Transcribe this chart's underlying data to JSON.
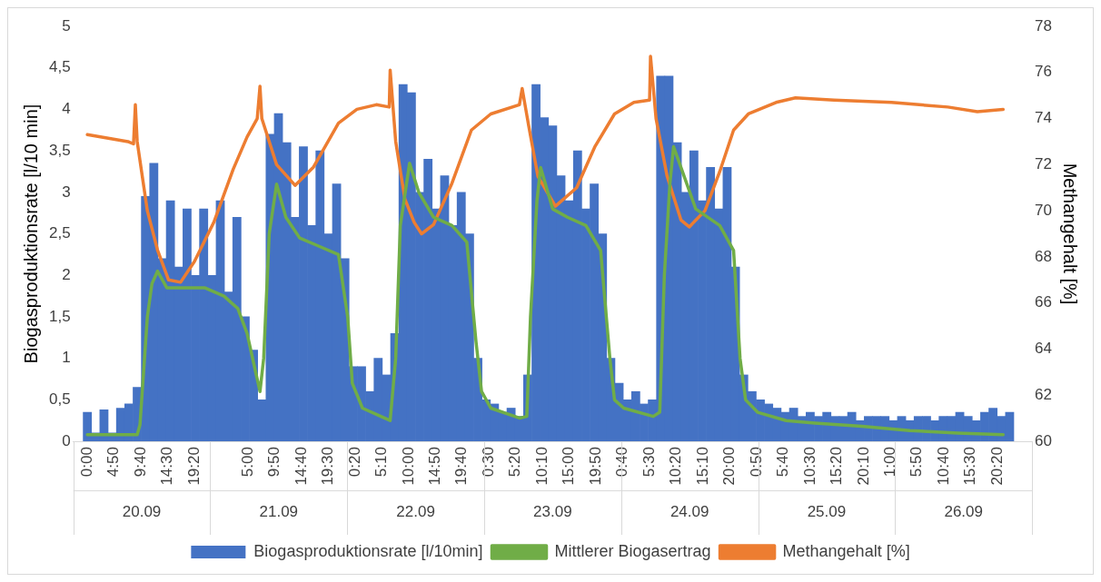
{
  "chart_data": {
    "type": "bar",
    "xlim": [
      "--09-20T00:00",
      "--09-27T00:00"
    ],
    "xticks": [
      {
        "value": "--09-20T00:00",
        "label": "0:00"
      },
      {
        "value": "--09-20T04:50",
        "label": "4:50"
      },
      {
        "value": "--09-20T09:40",
        "label": "9:40"
      },
      {
        "value": "--09-20T14:30",
        "label": "14:30"
      },
      {
        "value": "--09-20T19:20",
        "label": "19:20"
      },
      {
        "value": "--09-21T05:00",
        "label": "5:00"
      },
      {
        "value": "--09-21T09:50",
        "label": "9:50"
      },
      {
        "value": "--09-21T14:40",
        "label": "14:40"
      },
      {
        "value": "--09-21T19:30",
        "label": "19:30"
      },
      {
        "value": "--09-22T00:20",
        "label": "0:20"
      },
      {
        "value": "--09-22T05:10",
        "label": "5:10"
      },
      {
        "value": "--09-22T10:00",
        "label": "10:00"
      },
      {
        "value": "--09-22T14:50",
        "label": "14:50"
      },
      {
        "value": "--09-22T19:40",
        "label": "19:40"
      },
      {
        "value": "--09-23T00:30",
        "label": "0:30"
      },
      {
        "value": "--09-23T05:20",
        "label": "5:20"
      },
      {
        "value": "--09-23T10:10",
        "label": "10:10"
      },
      {
        "value": "--09-23T15:00",
        "label": "15:00"
      },
      {
        "value": "--09-23T19:50",
        "label": "19:50"
      },
      {
        "value": "--09-24T00:40",
        "label": "0:40"
      },
      {
        "value": "--09-24T05:30",
        "label": "5:30"
      },
      {
        "value": "--09-24T10:20",
        "label": "10:20"
      },
      {
        "value": "--09-24T15:10",
        "label": "15:10"
      },
      {
        "value": "--09-24T20:00",
        "label": "20:00"
      },
      {
        "value": "--09-25T00:50",
        "label": "0:50"
      },
      {
        "value": "--09-25T05:40",
        "label": "5:40"
      },
      {
        "value": "--09-25T10:30",
        "label": "10:30"
      },
      {
        "value": "--09-25T15:20",
        "label": "15:20"
      },
      {
        "value": "--09-25T20:10",
        "label": "20:10"
      },
      {
        "value": "--09-26T01:00",
        "label": "1:00"
      },
      {
        "value": "--09-26T05:50",
        "label": "5:50"
      },
      {
        "value": "--09-26T10:40",
        "label": "10:40"
      },
      {
        "value": "--09-26T15:30",
        "label": "15:30"
      },
      {
        "value": "--09-26T20:20",
        "label": "20:20"
      }
    ],
    "x2lim": [
      "--09-20",
      "--09-27"
    ],
    "x2ticks": [
      {
        "value": "--09-20",
        "label": "20.09"
      },
      {
        "value": "--09-21",
        "label": "21.09"
      },
      {
        "value": "--09-22",
        "label": "22.09"
      },
      {
        "value": "--09-23",
        "label": "23.09"
      },
      {
        "value": "--09-24",
        "label": "24.09"
      },
      {
        "value": "--09-25",
        "label": "25.09"
      },
      {
        "value": "--09-26",
        "label": "26.09"
      }
    ],
    "ylabel": "Biogasproduktionsrate [l/10 min]",
    "y2label": "Methangehalt [%]",
    "ylim": [
      0,
      5
    ],
    "yticks": [
      0,
      {
        "value": 0.5,
        "label": "0,5"
      },
      1,
      {
        "value": 1.5,
        "label": "1,5"
      },
      2,
      {
        "value": 2.5,
        "label": "2,5"
      },
      3,
      {
        "value": 3.5,
        "label": "3,5"
      },
      4,
      {
        "value": 4.5,
        "label": "4,5"
      },
      5
    ],
    "y2lim": [
      60,
      78
    ],
    "y2ticks": [
      60,
      62,
      64,
      66,
      68,
      70,
      72,
      74,
      76,
      78
    ],
    "legend": "bottom",
    "marker": "none",
    "line_style": "solid",
    "grid": false,
    "series": [
      {
        "name": "Biogasproduktionsrate [l/10min]",
        "color": "#4472c4",
        "x": [
          "--09-20T00:00",
          "--09-20T01:30",
          "--09-20T03:00",
          "--09-20T04:30",
          "--09-20T06:00",
          "--09-20T07:30",
          "--09-20T09:00",
          "--09-20T10:30",
          "--09-20T12:00",
          "--09-20T13:30",
          "--09-20T15:00",
          "--09-20T16:30",
          "--09-20T18:00",
          "--09-20T19:30",
          "--09-20T21:00",
          "--09-20T22:30",
          "--09-21T00:00",
          "--09-21T01:30",
          "--09-21T03:00",
          "--09-21T04:30",
          "--09-21T06:00",
          "--09-21T07:30",
          "--09-21T09:00",
          "--09-21T10:30",
          "--09-21T12:00",
          "--09-21T13:30",
          "--09-21T15:00",
          "--09-21T16:30",
          "--09-21T18:00",
          "--09-21T19:30",
          "--09-21T21:00",
          "--09-21T22:30",
          "--09-22T00:00",
          "--09-22T01:30",
          "--09-22T03:00",
          "--09-22T04:30",
          "--09-22T06:00",
          "--09-22T07:30",
          "--09-22T09:00",
          "--09-22T10:30",
          "--09-22T12:00",
          "--09-22T13:30",
          "--09-22T15:00",
          "--09-22T16:30",
          "--09-22T18:00",
          "--09-22T19:30",
          "--09-22T21:00",
          "--09-22T22:30",
          "--09-23T00:00",
          "--09-23T01:30",
          "--09-23T03:00",
          "--09-23T04:30",
          "--09-23T06:00",
          "--09-23T07:30",
          "--09-23T09:00",
          "--09-23T10:30",
          "--09-23T12:00",
          "--09-23T13:30",
          "--09-23T15:00",
          "--09-23T16:30",
          "--09-23T18:00",
          "--09-23T19:30",
          "--09-23T21:00",
          "--09-23T22:30",
          "--09-24T00:00",
          "--09-24T01:30",
          "--09-24T03:00",
          "--09-24T04:30",
          "--09-24T06:00",
          "--09-24T07:30",
          "--09-24T09:00",
          "--09-24T10:30",
          "--09-24T12:00",
          "--09-24T13:30",
          "--09-24T15:00",
          "--09-24T16:30",
          "--09-24T18:00",
          "--09-24T19:30",
          "--09-24T21:00",
          "--09-24T22:30",
          "--09-25T00:00",
          "--09-25T01:30",
          "--09-25T03:00",
          "--09-25T04:30",
          "--09-25T06:00",
          "--09-25T07:30",
          "--09-25T09:00",
          "--09-25T10:30",
          "--09-25T12:00",
          "--09-25T13:30",
          "--09-25T15:00",
          "--09-25T16:30",
          "--09-25T18:00",
          "--09-25T19:30",
          "--09-25T21:00",
          "--09-25T22:30",
          "--09-26T00:00",
          "--09-26T01:30",
          "--09-26T03:00",
          "--09-26T04:30",
          "--09-26T06:00",
          "--09-26T07:30",
          "--09-26T09:00",
          "--09-26T10:30",
          "--09-26T12:00",
          "--09-26T13:30",
          "--09-26T15:00",
          "--09-26T16:30",
          "--09-26T18:00",
          "--09-26T19:30",
          "--09-26T21:00",
          "--09-26T22:30"
        ],
        "values": [
          0.35,
          0.1,
          0.38,
          0.1,
          0.4,
          0.45,
          0.65,
          2.95,
          3.35,
          2.2,
          2.9,
          2.1,
          2.8,
          2.0,
          2.8,
          2.0,
          2.9,
          1.8,
          2.7,
          1.5,
          1.1,
          0.5,
          3.7,
          3.95,
          3.6,
          2.7,
          3.55,
          2.6,
          3.5,
          2.5,
          3.1,
          2.2,
          0.9,
          0.9,
          0.6,
          1.0,
          0.8,
          1.3,
          4.3,
          4.2,
          3.0,
          3.4,
          2.8,
          3.2,
          2.6,
          3.0,
          2.5,
          1.0,
          0.5,
          0.45,
          0.35,
          0.4,
          0.3,
          0.8,
          4.3,
          3.9,
          3.8,
          3.2,
          2.9,
          3.5,
          2.8,
          3.1,
          2.5,
          1.0,
          0.7,
          0.5,
          0.6,
          0.45,
          0.5,
          4.4,
          4.4,
          3.6,
          3.0,
          3.5,
          2.9,
          3.3,
          2.8,
          3.3,
          2.1,
          0.8,
          0.6,
          0.5,
          0.45,
          0.4,
          0.35,
          0.4,
          0.3,
          0.35,
          0.3,
          0.35,
          0.3,
          0.3,
          0.35,
          0.25,
          0.3,
          0.3,
          0.3,
          0.25,
          0.3,
          0.25,
          0.3,
          0.3,
          0.25,
          0.3,
          0.3,
          0.35,
          0.3,
          0.25,
          0.35,
          0.4,
          0.3,
          0.35
        ]
      },
      {
        "name": "Mittlerer Biogasertrag",
        "type": "line",
        "color": "#70ad47",
        "x": [
          "--09-20T00:00",
          "--09-20T09:00",
          "--09-20T09:30",
          "--09-20T10:50",
          "--09-20T11:40",
          "--09-20T12:40",
          "--09-20T14:20",
          "--09-20T17:40",
          "--09-20T21:10",
          "--09-21T00:40",
          "--09-21T03:10",
          "--09-21T04:50",
          "--09-21T06:10",
          "--09-21T07:10",
          "--09-21T07:50",
          "--09-21T08:50",
          "--09-21T10:10",
          "--09-21T11:50",
          "--09-21T14:20",
          "--09-21T17:50",
          "--09-21T21:20",
          "--09-21T23:00",
          "--09-21T23:50",
          "--09-22T01:40",
          "--09-22T05:00",
          "--09-22T06:40",
          "--09-22T07:40",
          "--09-22T08:30",
          "--09-22T10:10",
          "--09-22T11:50",
          "--09-22T14:30",
          "--09-22T17:50",
          "--09-22T20:30",
          "--09-22T22:10",
          "--09-22T23:10",
          "--09-23T00:50",
          "--09-23T06:00",
          "--09-23T07:20",
          "--09-23T08:00",
          "--09-23T09:10",
          "--09-23T09:50",
          "--09-23T12:00",
          "--09-23T14:40",
          "--09-23T18:00",
          "--09-23T20:40",
          "--09-23T22:20",
          "--09-23T23:10",
          "--09-24T00:50",
          "--09-24T06:10",
          "--09-24T07:20",
          "--09-24T08:10",
          "--09-24T09:10",
          "--09-24T09:50",
          "--09-24T11:10",
          "--09-24T13:50",
          "--09-24T18:10",
          "--09-24T20:40",
          "--09-24T21:50",
          "--09-24T22:50",
          "--09-25T01:00",
          "--09-25T06:10",
          "--09-25T11:20",
          "--09-25T19:50",
          "--09-26T04:30",
          "--09-26T13:10",
          "--09-26T21:20"
        ],
        "values": [
          0.08,
          0.08,
          0.2,
          1.5,
          1.9,
          2.05,
          1.85,
          1.85,
          1.85,
          1.75,
          1.6,
          1.3,
          0.9,
          0.6,
          1.0,
          2.5,
          3.1,
          2.7,
          2.45,
          2.35,
          2.25,
          1.5,
          0.7,
          0.4,
          0.3,
          0.25,
          1.0,
          2.6,
          3.35,
          3.0,
          2.7,
          2.6,
          2.4,
          1.2,
          0.6,
          0.4,
          0.28,
          0.3,
          1.5,
          2.9,
          3.3,
          2.8,
          2.7,
          2.6,
          2.3,
          1.0,
          0.5,
          0.4,
          0.3,
          0.35,
          2.0,
          3.1,
          3.55,
          3.3,
          2.8,
          2.6,
          2.3,
          1.0,
          0.5,
          0.35,
          0.25,
          0.22,
          0.18,
          0.13,
          0.1,
          0.08
        ]
      },
      {
        "name": "Methangehalt [%]",
        "type": "line",
        "axis": "y2",
        "color": "#ed7d31",
        "x": [
          "--09-20T00:00",
          "--09-20T07:20",
          "--09-20T08:20",
          "--09-20T08:40",
          "--09-20T09:00",
          "--09-20T10:50",
          "--09-20T12:40",
          "--09-20T14:40",
          "--09-20T16:50",
          "--09-20T19:20",
          "--09-20T22:50",
          "--09-21T02:20",
          "--09-21T04:50",
          "--09-21T06:40",
          "--09-21T07:10",
          "--09-21T07:30",
          "--09-21T10:10",
          "--09-21T13:30",
          "--09-21T16:50",
          "--09-21T21:20",
          "--09-22T00:40",
          "--09-22T04:10",
          "--09-22T06:30",
          "--09-22T06:40",
          "--09-22T07:40",
          "--09-22T09:20",
          "--09-22T11:00",
          "--09-22T12:20",
          "--09-22T14:30",
          "--09-22T17:50",
          "--09-22T21:20",
          "--09-23T00:50",
          "--09-23T06:00",
          "--09-23T06:30",
          "--09-23T07:40",
          "--09-23T09:20",
          "--09-23T12:30",
          "--09-23T16:20",
          "--09-23T19:40",
          "--09-23T23:10",
          "--09-24T02:40",
          "--09-24T05:30",
          "--09-24T05:40",
          "--09-24T06:40",
          "--09-24T08:40",
          "--09-24T11:10",
          "--09-24T12:40",
          "--09-24T15:30",
          "--09-24T18:10",
          "--09-24T20:40",
          "--09-24T23:20",
          "--09-25T04:20",
          "--09-25T07:50",
          "--09-25T14:50",
          "--09-26T01:10",
          "--09-26T11:20",
          "--09-26T16:40",
          "--09-26T21:20"
        ],
        "values": [
          73.3,
          73,
          72.9,
          74.6,
          73,
          70,
          68.3,
          67,
          66.9,
          67.8,
          69.5,
          71.8,
          73.2,
          74,
          75.4,
          74,
          72,
          71.1,
          71.9,
          73.8,
          74.4,
          74.6,
          74.5,
          76.1,
          73,
          70.5,
          69.5,
          69,
          69.4,
          71.2,
          73.5,
          74.2,
          74.6,
          75.3,
          73.7,
          71.5,
          70.2,
          71,
          72.8,
          74.2,
          74.7,
          74.8,
          76.7,
          74,
          71.5,
          69.6,
          69.3,
          70,
          71.7,
          73.5,
          74.2,
          74.7,
          74.9,
          74.8,
          74.7,
          74.5,
          74.3,
          74.4
        ]
      }
    ]
  }
}
